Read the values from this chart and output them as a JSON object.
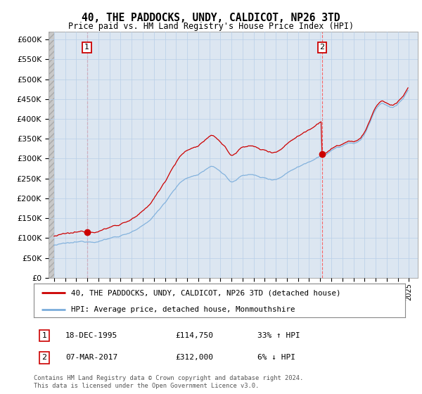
{
  "title": "40, THE PADDOCKS, UNDY, CALDICOT, NP26 3TD",
  "subtitle": "Price paid vs. HM Land Registry's House Price Index (HPI)",
  "ylim": [
    0,
    620000
  ],
  "yticks": [
    0,
    50000,
    100000,
    150000,
    200000,
    250000,
    300000,
    350000,
    400000,
    450000,
    500000,
    550000,
    600000
  ],
  "hpi_color": "#7aaddb",
  "price_color": "#cc0000",
  "sale1_year": 1995.96,
  "sale1_price": 114750,
  "sale2_year": 2017.18,
  "sale2_price": 312000,
  "legend_price_label": "40, THE PADDOCKS, UNDY, CALDICOT, NP26 3TD (detached house)",
  "legend_hpi_label": "HPI: Average price, detached house, Monmouthshire",
  "table_row1": [
    "1",
    "18-DEC-1995",
    "£114,750",
    "33% ↑ HPI"
  ],
  "table_row2": [
    "2",
    "07-MAR-2017",
    "£312,000",
    "6% ↓ HPI"
  ],
  "footer": "Contains HM Land Registry data © Crown copyright and database right 2024.\nThis data is licensed under the Open Government Licence v3.0.",
  "bg_color": "#dce6f1",
  "grid_color": "#b8cfe8",
  "xlim_left": 1992.5,
  "xlim_right": 2025.8
}
